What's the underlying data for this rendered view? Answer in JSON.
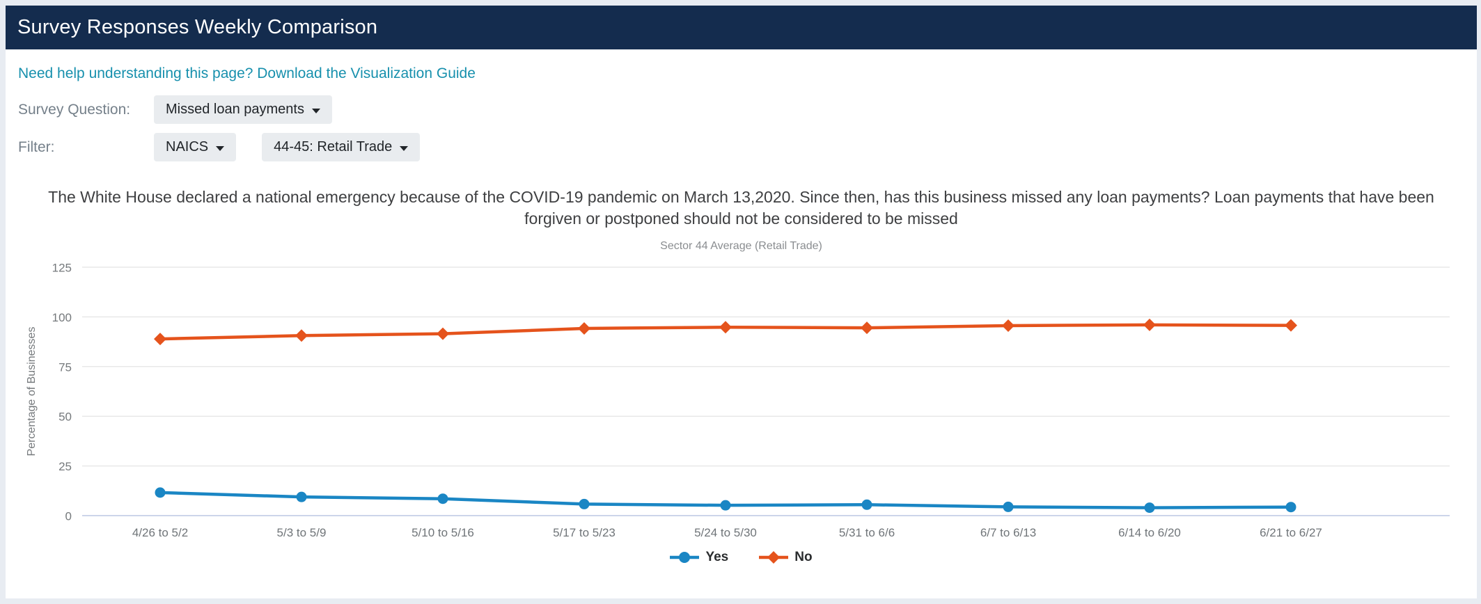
{
  "header": {
    "title": "Survey Responses Weekly Comparison"
  },
  "help_link": {
    "text": "Need help understanding this page? Download the Visualization Guide"
  },
  "controls": {
    "survey_question_label": "Survey Question:",
    "survey_question_value": "Missed loan payments",
    "filter_label": "Filter:",
    "filter_type_value": "NAICS",
    "filter_value": "44-45: Retail Trade"
  },
  "colors": {
    "header_bg": "#142c4e",
    "link": "#1790ad",
    "series_yes": "#1a86c4",
    "series_no": "#e5531c",
    "gridline": "#e8e8e8",
    "zero_line": "#ccd5ea",
    "axis_text": "#75797c"
  },
  "chart_data": {
    "type": "line",
    "title": "The White House declared a national emergency because of the COVID-19 pandemic on March 13,2020. Since then, has this business missed any loan payments? Loan payments that have been forgiven or postponed should not be considered to be missed",
    "subtitle": "Sector 44 Average (Retail Trade)",
    "xlabel": "",
    "ylabel": "Percentage of Businesses",
    "ylim": [
      0,
      125
    ],
    "yticks": [
      0,
      25,
      50,
      75,
      100,
      125
    ],
    "grid": true,
    "legend_position": "bottom",
    "categories": [
      "4/26 to 5/2",
      "5/3 to 5/9",
      "5/10 to 5/16",
      "5/17 to 5/23",
      "5/24 to 5/30",
      "5/31 to 6/6",
      "6/7 to 6/13",
      "6/14 to 6/20",
      "6/21 to 6/27"
    ],
    "series": [
      {
        "name": "Yes",
        "marker": "circle",
        "color": "#1a86c4",
        "values": [
          11.6,
          9.4,
          8.5,
          5.8,
          5.2,
          5.5,
          4.4,
          4.0,
          4.3
        ]
      },
      {
        "name": "No",
        "marker": "diamond",
        "color": "#e5531c",
        "values": [
          88.9,
          90.6,
          91.5,
          94.2,
          94.8,
          94.5,
          95.6,
          96.0,
          95.7
        ]
      }
    ]
  }
}
